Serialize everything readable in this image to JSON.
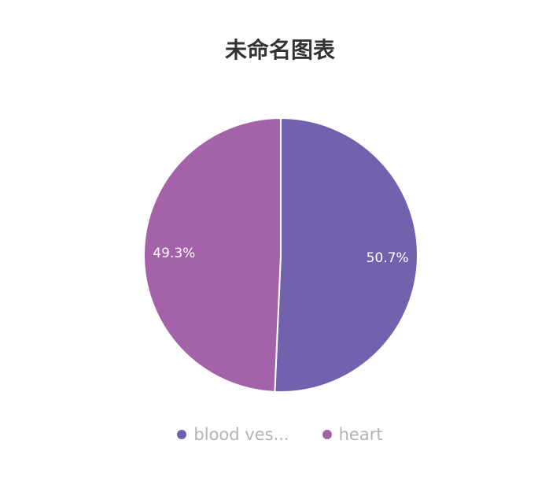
{
  "chart_data": {
    "type": "pie",
    "title": "未命名图表",
    "slices": [
      {
        "name": "blood ves...",
        "label": "50.7%",
        "value": 50.7,
        "color": "#7262ae"
      },
      {
        "name": "heart",
        "label": "49.3%",
        "value": 49.3,
        "color": "#a463a8"
      }
    ],
    "legend_position": "bottom"
  }
}
